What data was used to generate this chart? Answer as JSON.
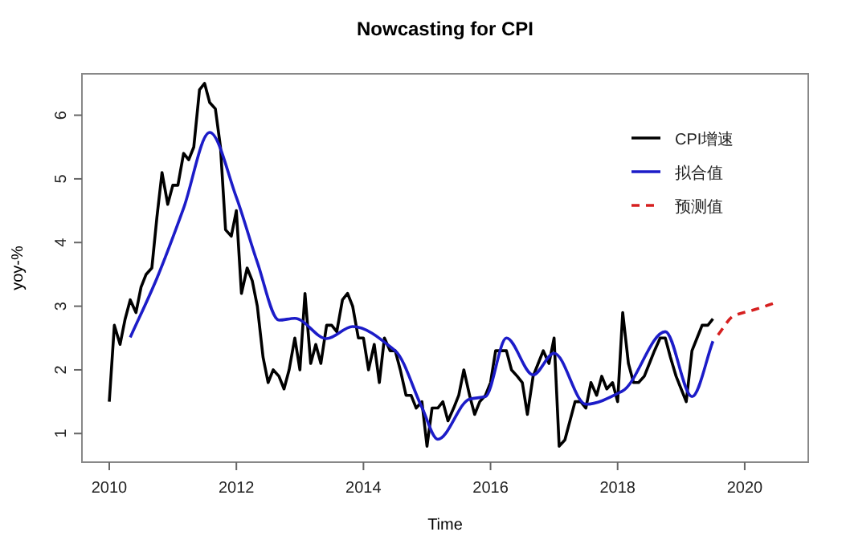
{
  "chart_data": {
    "type": "line",
    "title": "Nowcasting for CPI",
    "xlabel": "Time",
    "ylabel": "yoy-%",
    "xlim": [
      2009.57,
      2021.0
    ],
    "ylim": [
      0.55,
      6.65
    ],
    "xticks": [
      2010,
      2012,
      2014,
      2016,
      2018,
      2020
    ],
    "yticks": [
      1,
      2,
      3,
      4,
      5,
      6
    ],
    "grid": false,
    "legend": "top right",
    "series": [
      {
        "name": "CPI增速",
        "color": "#000000",
        "line_style": "solid",
        "x": [
          2010.0,
          2010.08,
          2010.17,
          2010.25,
          2010.33,
          2010.42,
          2010.5,
          2010.58,
          2010.67,
          2010.75,
          2010.83,
          2010.92,
          2011.0,
          2011.08,
          2011.17,
          2011.25,
          2011.33,
          2011.42,
          2011.5,
          2011.58,
          2011.67,
          2011.75,
          2011.83,
          2011.92,
          2012.0,
          2012.08,
          2012.17,
          2012.25,
          2012.33,
          2012.42,
          2012.5,
          2012.58,
          2012.67,
          2012.75,
          2012.83,
          2012.92,
          2013.0,
          2013.08,
          2013.17,
          2013.25,
          2013.33,
          2013.42,
          2013.5,
          2013.58,
          2013.67,
          2013.75,
          2013.83,
          2013.92,
          2014.0,
          2014.08,
          2014.17,
          2014.25,
          2014.33,
          2014.42,
          2014.5,
          2014.58,
          2014.67,
          2014.75,
          2014.83,
          2014.92,
          2015.0,
          2015.08,
          2015.17,
          2015.25,
          2015.33,
          2015.42,
          2015.5,
          2015.58,
          2015.67,
          2015.75,
          2015.83,
          2015.92,
          2016.0,
          2016.08,
          2016.17,
          2016.25,
          2016.33,
          2016.42,
          2016.5,
          2016.58,
          2016.67,
          2016.75,
          2016.83,
          2016.92,
          2017.0,
          2017.08,
          2017.17,
          2017.25,
          2017.33,
          2017.42,
          2017.5,
          2017.58,
          2017.67,
          2017.75,
          2017.83,
          2017.92,
          2018.0,
          2018.08,
          2018.17,
          2018.25,
          2018.33,
          2018.42,
          2018.5,
          2018.58,
          2018.67,
          2018.75,
          2018.83,
          2018.92,
          2019.0,
          2019.08,
          2019.17,
          2019.25,
          2019.33,
          2019.42,
          2019.5
        ],
        "values": [
          1.5,
          2.7,
          2.4,
          2.8,
          3.1,
          2.9,
          3.3,
          3.5,
          3.6,
          4.4,
          5.1,
          4.6,
          4.9,
          4.9,
          5.4,
          5.3,
          5.5,
          6.4,
          6.5,
          6.2,
          6.1,
          5.5,
          4.2,
          4.1,
          4.5,
          3.2,
          3.6,
          3.4,
          3.0,
          2.2,
          1.8,
          2.0,
          1.9,
          1.7,
          2.0,
          2.5,
          2.0,
          3.2,
          2.1,
          2.4,
          2.1,
          2.7,
          2.7,
          2.6,
          3.1,
          3.2,
          3.0,
          2.5,
          2.5,
          2.0,
          2.4,
          1.8,
          2.5,
          2.3,
          2.3,
          2.0,
          1.6,
          1.6,
          1.4,
          1.5,
          0.8,
          1.4,
          1.4,
          1.5,
          1.2,
          1.4,
          1.6,
          2.0,
          1.6,
          1.3,
          1.5,
          1.6,
          1.8,
          2.3,
          2.3,
          2.3,
          2.0,
          1.9,
          1.8,
          1.3,
          1.9,
          2.1,
          2.3,
          2.1,
          2.5,
          0.8,
          0.9,
          1.2,
          1.5,
          1.5,
          1.4,
          1.8,
          1.6,
          1.9,
          1.7,
          1.8,
          1.5,
          2.9,
          2.1,
          1.8,
          1.8,
          1.9,
          2.1,
          2.3,
          2.5,
          2.5,
          2.2,
          1.9,
          1.7,
          1.5,
          2.3,
          2.5,
          2.7,
          2.7,
          2.8
        ]
      },
      {
        "name": "拟合值",
        "color": "#1c1cc8",
        "line_style": "solid",
        "x": [
          2010.33,
          2010.75,
          2011.17,
          2011.58,
          2012.0,
          2012.33,
          2012.67,
          2012.92,
          2013.42,
          2013.83,
          2014.5,
          2014.92,
          2015.17,
          2015.67,
          2015.92,
          2016.25,
          2016.67,
          2017.0,
          2017.5,
          2018.08,
          2018.75,
          2019.17,
          2019.5
        ],
        "values": [
          2.51,
          3.44,
          4.54,
          5.73,
          4.71,
          3.69,
          2.78,
          2.81,
          2.49,
          2.68,
          2.3,
          1.41,
          0.91,
          1.54,
          1.58,
          2.5,
          1.92,
          2.26,
          1.46,
          1.67,
          2.6,
          1.58,
          2.45
        ]
      },
      {
        "name": "预测值",
        "color": "#d62020",
        "line_style": "dashed",
        "x": [
          2019.58,
          2019.83,
          2020.17,
          2020.5
        ],
        "values": [
          2.55,
          2.85,
          2.95,
          3.06
        ]
      }
    ]
  }
}
